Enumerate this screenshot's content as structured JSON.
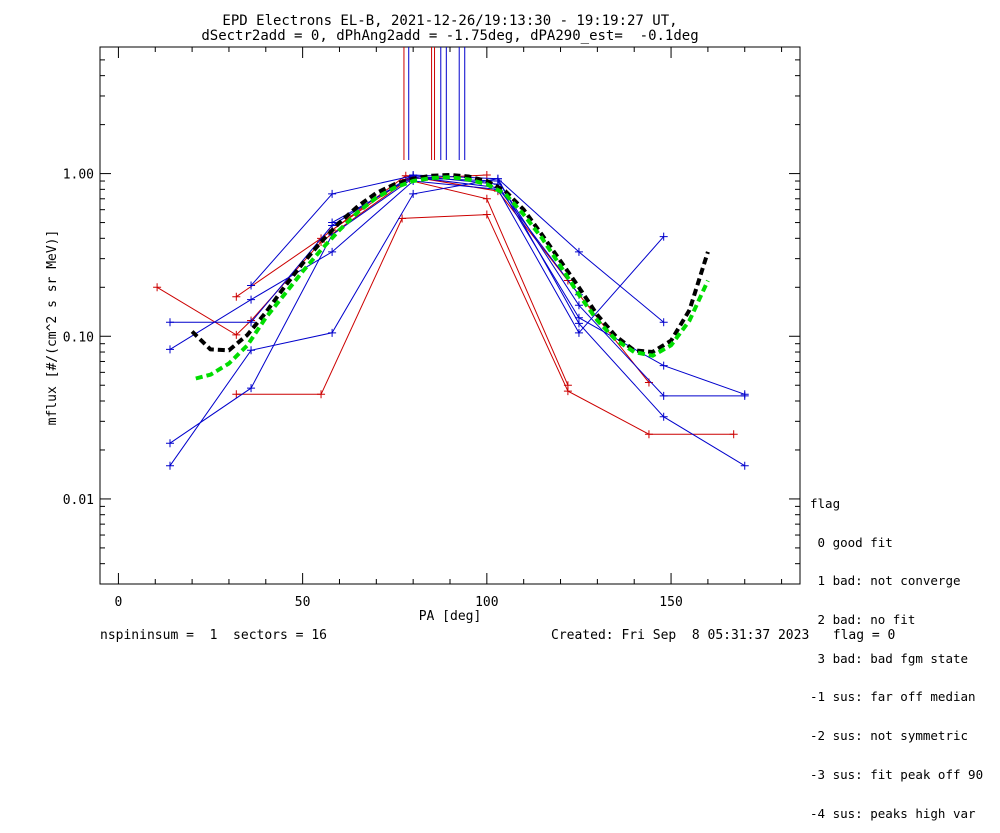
{
  "title_line1": "EPD Electrons EL-B, 2021-12-26/19:13:30 - 19:19:27 UT,",
  "title_line2": "dSectr2add = 0, dPhAng2add = -1.75deg, dPA290_est=  -0.1deg",
  "legend": {
    "heading": "flag",
    "items": [
      " 0 good fit",
      " 1 bad: not converge",
      " 2 bad: no fit",
      " 3 bad: bad fgm state",
      "-1 sus: far off median",
      "-2 sus: not symmetric",
      "-3 sus: fit peak off 90",
      "-4 sus: peaks high var"
    ]
  },
  "footer": {
    "left": "nspininsum =  1  sectors = 16",
    "right": "Created: Fri Sep  8 05:31:37 2023   flag = 0"
  },
  "colors": {
    "red": "#cc0000",
    "blue": "#0000cc",
    "black": "#000000",
    "green": "#00dd00"
  },
  "chart_data": {
    "type": "line",
    "xlabel": "PA [deg]",
    "ylabel": "mflux [#/(cm^2 s sr MeV)]",
    "xlim": [
      -5,
      185
    ],
    "ylim": [
      0.003,
      6
    ],
    "yscale": "log",
    "xticks": [
      0,
      50,
      100,
      150
    ],
    "xtick_labels": [
      "0",
      "50",
      "100",
      "150"
    ],
    "yticks": [
      0.01,
      0.1,
      1.0
    ],
    "ytick_labels": [
      "0.01",
      "0.10",
      "1.00"
    ],
    "series": [
      {
        "color": "red",
        "points": [
          [
            10.5,
            0.2
          ],
          [
            32,
            0.102
          ],
          [
            36,
            0.125
          ],
          [
            55,
            0.38
          ],
          [
            79,
            0.93
          ],
          [
            100,
            0.98
          ]
        ]
      },
      {
        "color": "red",
        "points": [
          [
            32,
            0.175
          ],
          [
            55,
            0.4
          ],
          [
            78,
            0.97
          ],
          [
            103,
            0.78
          ],
          [
            122,
            0.22
          ],
          [
            144,
            0.052
          ]
        ]
      },
      {
        "color": "red",
        "points": [
          [
            32,
            0.044
          ],
          [
            55,
            0.044
          ],
          [
            77,
            0.53
          ],
          [
            100,
            0.56
          ],
          [
            122,
            0.046
          ],
          [
            144,
            0.025
          ],
          [
            167,
            0.025
          ]
        ]
      },
      {
        "color": "red",
        "points": [
          [
            58,
            0.45
          ],
          [
            78,
            0.92
          ],
          [
            100,
            0.7
          ],
          [
            122,
            0.05
          ]
        ]
      },
      {
        "color": "blue",
        "points": [
          [
            14,
            0.122
          ],
          [
            36,
            0.122
          ],
          [
            58,
            0.48
          ],
          [
            80,
            0.98
          ],
          [
            103,
            0.93
          ],
          [
            125,
            0.33
          ],
          [
            148,
            0.122
          ]
        ]
      },
      {
        "color": "blue",
        "points": [
          [
            14,
            0.083
          ],
          [
            36,
            0.168
          ],
          [
            58,
            0.33
          ],
          [
            80,
            0.9
          ],
          [
            103,
            0.8
          ],
          [
            125,
            0.105
          ],
          [
            148,
            0.41
          ]
        ]
      },
      {
        "color": "blue",
        "points": [
          [
            36,
            0.205
          ],
          [
            58,
            0.75
          ],
          [
            80,
            0.97
          ],
          [
            103,
            0.86
          ],
          [
            125,
            0.13
          ],
          [
            148,
            0.066
          ],
          [
            170,
            0.044
          ]
        ]
      },
      {
        "color": "blue",
        "points": [
          [
            14,
            0.022
          ],
          [
            36,
            0.048
          ],
          [
            58,
            0.42
          ],
          [
            80,
            0.94
          ],
          [
            103,
            0.9
          ],
          [
            125,
            0.155
          ],
          [
            148,
            0.043
          ],
          [
            170,
            0.043
          ]
        ]
      },
      {
        "color": "blue",
        "points": [
          [
            14,
            0.016
          ],
          [
            36,
            0.082
          ],
          [
            58,
            0.105
          ],
          [
            80,
            0.75
          ],
          [
            103,
            0.93
          ],
          [
            125,
            0.12
          ],
          [
            148,
            0.032
          ],
          [
            170,
            0.016
          ]
        ]
      },
      {
        "color": "blue",
        "points": [
          [
            58,
            0.5
          ],
          [
            80,
            0.95
          ],
          [
            103,
            0.82
          ],
          [
            125,
            0.18
          ]
        ]
      }
    ],
    "fit_curves": [
      {
        "color": "black",
        "style": "dashed",
        "points": [
          [
            20,
            0.107
          ],
          [
            25,
            0.083
          ],
          [
            30,
            0.082
          ],
          [
            35,
            0.102
          ],
          [
            40,
            0.14
          ],
          [
            45,
            0.2
          ],
          [
            50,
            0.28
          ],
          [
            55,
            0.38
          ],
          [
            60,
            0.5
          ],
          [
            65,
            0.63
          ],
          [
            70,
            0.76
          ],
          [
            75,
            0.86
          ],
          [
            80,
            0.93
          ],
          [
            85,
            0.97
          ],
          [
            90,
            0.98
          ],
          [
            95,
            0.96
          ],
          [
            100,
            0.9
          ],
          [
            105,
            0.78
          ],
          [
            110,
            0.6
          ],
          [
            115,
            0.42
          ],
          [
            120,
            0.29
          ],
          [
            125,
            0.2
          ],
          [
            130,
            0.135
          ],
          [
            135,
            0.1
          ],
          [
            140,
            0.082
          ],
          [
            145,
            0.08
          ],
          [
            150,
            0.094
          ],
          [
            155,
            0.145
          ],
          [
            160,
            0.33
          ]
        ]
      },
      {
        "color": "green",
        "style": "dashed",
        "points": [
          [
            21,
            0.055
          ],
          [
            25,
            0.058
          ],
          [
            30,
            0.068
          ],
          [
            35,
            0.088
          ],
          [
            40,
            0.13
          ],
          [
            45,
            0.18
          ],
          [
            50,
            0.25
          ],
          [
            55,
            0.34
          ],
          [
            60,
            0.45
          ],
          [
            65,
            0.58
          ],
          [
            70,
            0.71
          ],
          [
            75,
            0.82
          ],
          [
            80,
            0.9
          ],
          [
            85,
            0.94
          ],
          [
            90,
            0.95
          ],
          [
            95,
            0.92
          ],
          [
            100,
            0.86
          ],
          [
            105,
            0.75
          ],
          [
            110,
            0.56
          ],
          [
            115,
            0.4
          ],
          [
            120,
            0.27
          ],
          [
            125,
            0.18
          ],
          [
            130,
            0.125
          ],
          [
            135,
            0.095
          ],
          [
            140,
            0.08
          ],
          [
            145,
            0.076
          ],
          [
            150,
            0.088
          ],
          [
            155,
            0.125
          ],
          [
            160,
            0.22
          ]
        ]
      }
    ],
    "marker_lines": [
      {
        "x": 77.5,
        "color": "red"
      },
      {
        "x": 78.8,
        "color": "blue"
      },
      {
        "x": 85.0,
        "color": "red"
      },
      {
        "x": 85.8,
        "color": "red"
      },
      {
        "x": 87.5,
        "color": "blue"
      },
      {
        "x": 89.0,
        "color": "blue"
      },
      {
        "x": 92.5,
        "color": "blue"
      },
      {
        "x": 94.0,
        "color": "blue"
      }
    ]
  }
}
